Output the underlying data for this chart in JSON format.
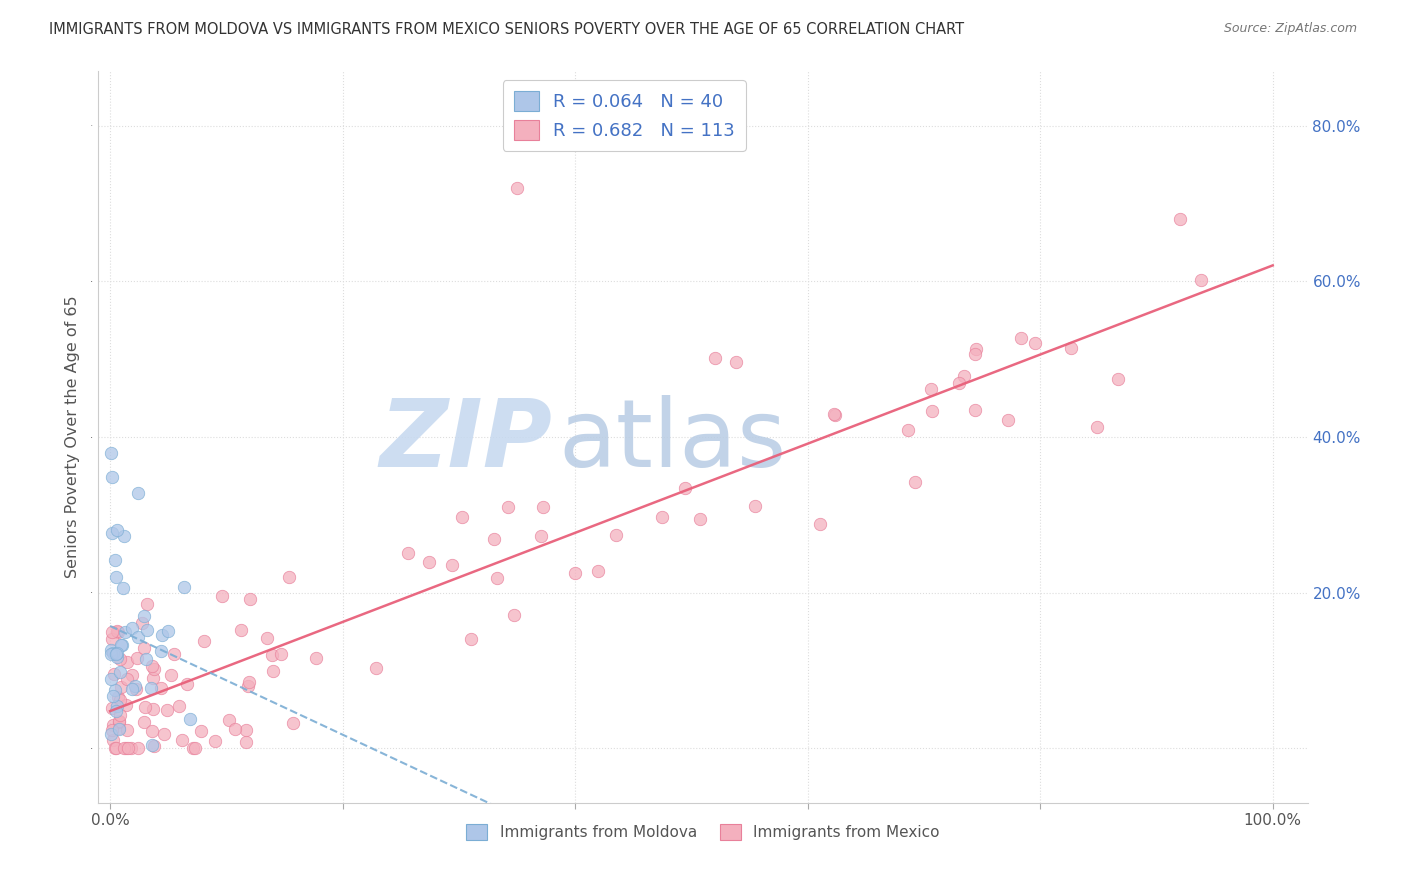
{
  "title": "IMMIGRANTS FROM MOLDOVA VS IMMIGRANTS FROM MEXICO SENIORS POVERTY OVER THE AGE OF 65 CORRELATION CHART",
  "source": "Source: ZipAtlas.com",
  "ylabel": "Seniors Poverty Over the Age of 65",
  "moldova_R": 0.064,
  "moldova_N": 40,
  "mexico_R": 0.682,
  "mexico_N": 113,
  "moldova_color": "#aec6e8",
  "mexico_color": "#f4b0be",
  "moldova_edge_color": "#7badd4",
  "mexico_edge_color": "#e8809a",
  "moldova_line_color": "#7badd4",
  "mexico_line_color": "#e8607a",
  "watermark_zip_color": "#c8d8ee",
  "watermark_atlas_color": "#b0c8e8",
  "right_axis_color": "#4472c4",
  "title_color": "#333333",
  "source_color": "#777777",
  "grid_color": "#dddddd",
  "bottom_label_color": "#555555"
}
